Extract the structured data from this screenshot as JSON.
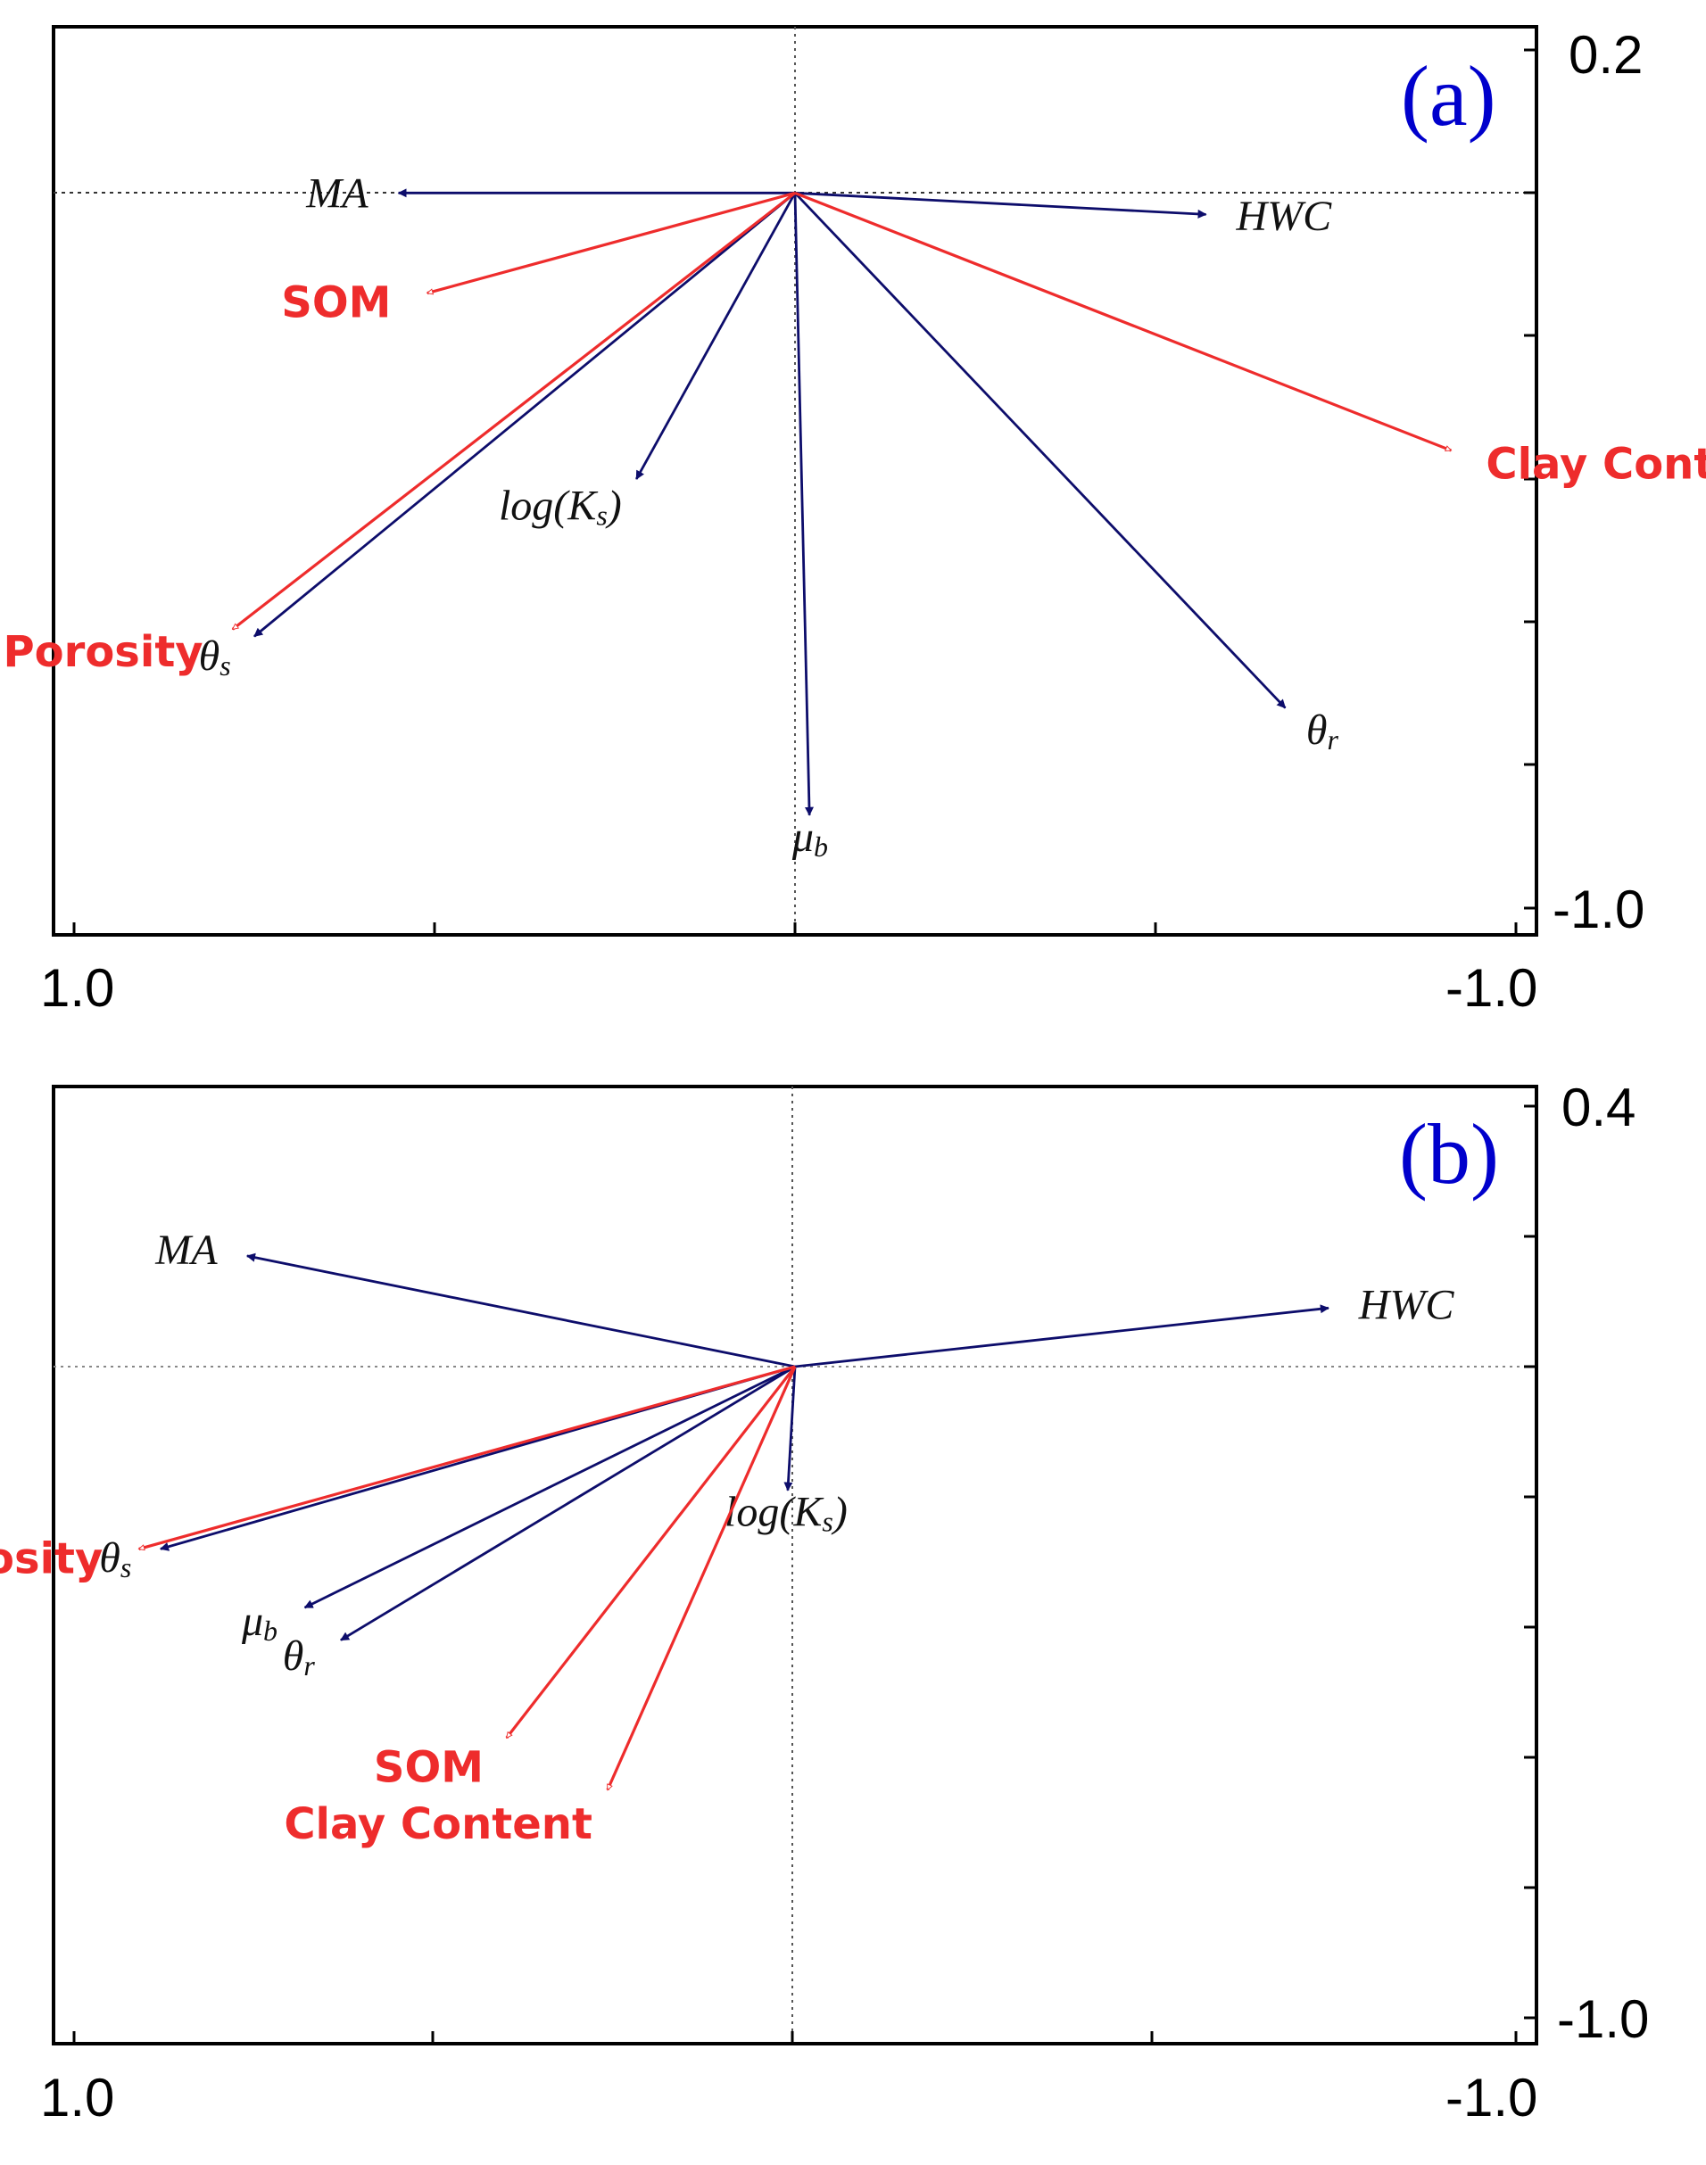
{
  "colors": {
    "response": "#0d0d6b",
    "environment": "#ee2c2c",
    "tag": "#0000cc"
  },
  "chart_data": [
    {
      "type": "biplot",
      "panel": "(a)",
      "x_tick_labels": {
        "left": "1.0",
        "right": "-1.0"
      },
      "y_tick_labels": {
        "top": "0.2",
        "bottom": "-1.0"
      },
      "xlim": [
        1.0,
        -1.0
      ],
      "ylim": [
        -1.0,
        0.2
      ],
      "response_vectors": [
        {
          "name": "MA",
          "sub": "",
          "x": 0.55,
          "y": 0.0
        },
        {
          "name": "HWC",
          "sub": "",
          "x": -0.57,
          "y": -0.03
        },
        {
          "name": "log(K",
          "sub": "s",
          "tail": ")",
          "x": 0.22,
          "y": -0.4
        },
        {
          "name": "θ",
          "sub": "s",
          "x": 0.75,
          "y": -0.62
        },
        {
          "name": "θ",
          "sub": "r",
          "x": -0.68,
          "y": -0.72
        },
        {
          "name": "μ",
          "sub": "b",
          "x": -0.02,
          "y": -0.87
        }
      ],
      "environment_vectors": [
        {
          "name": "SOM",
          "x": 0.51,
          "y": -0.14
        },
        {
          "name": "Clay Content",
          "x": -0.91,
          "y": -0.36
        },
        {
          "name": "Porosity",
          "x": 0.78,
          "y": -0.61
        }
      ]
    },
    {
      "type": "biplot",
      "panel": "(b)",
      "x_tick_labels": {
        "left": "1.0",
        "right": "-1.0"
      },
      "y_tick_labels": {
        "top": "0.4",
        "bottom": "-1.0"
      },
      "xlim": [
        1.0,
        -1.0
      ],
      "ylim": [
        -1.0,
        0.4
      ],
      "response_vectors": [
        {
          "name": "MA",
          "sub": "",
          "x": 0.76,
          "y": 0.17
        },
        {
          "name": "HWC",
          "sub": "",
          "x": -0.74,
          "y": 0.09
        },
        {
          "name": "log(K",
          "sub": "s",
          "tail": ")",
          "x": 0.01,
          "y": -0.19
        },
        {
          "name": "θ",
          "sub": "s",
          "x": 0.88,
          "y": -0.28
        },
        {
          "name": "μ",
          "sub": "b",
          "x": 0.68,
          "y": -0.37
        },
        {
          "name": "θ",
          "sub": "r",
          "x": 0.63,
          "y": -0.42
        }
      ],
      "environment_vectors": [
        {
          "name": "Porosity",
          "x": 0.91,
          "y": -0.28
        },
        {
          "name": "SOM",
          "x": 0.4,
          "y": -0.57
        },
        {
          "name": "Clay Content",
          "x": 0.26,
          "y": -0.65
        }
      ]
    }
  ]
}
